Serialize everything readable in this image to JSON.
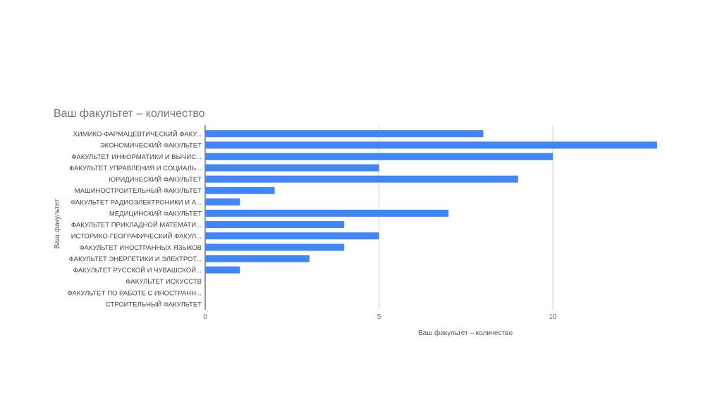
{
  "chart_data": {
    "type": "bar",
    "orientation": "horizontal",
    "title": "Ваш факультет – количество",
    "xlabel": "Ваш факультет – количество",
    "ylabel": "Ваш факультет",
    "categories": [
      "ХИМИКО-ФАРМАЦЕВТИЧЕСКИЙ ФАКУ...",
      "ЭКОНОМИЧЕСКИЙ ФАКУЛЬТЕТ",
      "ФАКУЛЬТЕТ ИНФОРМАТИКИ И ВЫЧИС...",
      "ФАКУЛЬТЕТ УПРАВЛЕНИЯ И СОЦИАЛЬ...",
      "ЮРИДИЧЕСКИЙ ФАКУЛЬТЕТ",
      "МАШИНОСТРОИТЕЛЬНЫЙ ФАКУЛЬТЕТ",
      "ФАКУЛЬТЕТ РАДИОЭЛЕКТРОНИКИ И А...",
      "МЕДИЦИНСКИЙ ФАКУЛЬТЕТ",
      "ФАКУЛЬТЕТ ПРИКЛАДНОЙ МАТЕМАТИ...",
      "ИСТОРИКО-ГЕОГРАФИЧЕСКИЙ ФАКУЛ...",
      "ФАКУЛЬТЕТ ИНОСТРАННЫХ ЯЗЫКОВ",
      "ФАКУЛЬТЕТ ЭНЕРГЕТИКИ И ЭЛЕКТРОТ...",
      "ФАКУЛЬТЕТ РУССКОЙ И ЧУВАШСКОЙ...",
      "ФАКУЛЬТЕТ ИСКУССТВ",
      "ФАКУЛЬТЕТ ПО РАБОТЕ С ИНОСТРАНН...",
      "СТРОИТЕЛЬНЫЙ ФАКУЛЬТЕТ"
    ],
    "values": [
      8,
      13,
      10,
      5,
      9,
      2,
      1,
      7,
      4,
      5,
      4,
      3,
      1,
      0,
      0,
      0
    ],
    "xlim": [
      0,
      13
    ],
    "xticks": [
      0,
      5,
      10
    ],
    "xtick_labels": [
      "0",
      "5",
      "10"
    ],
    "grid": true,
    "legend": "none",
    "bar_color": "#4285f4",
    "grid_color": "#cccccc"
  }
}
